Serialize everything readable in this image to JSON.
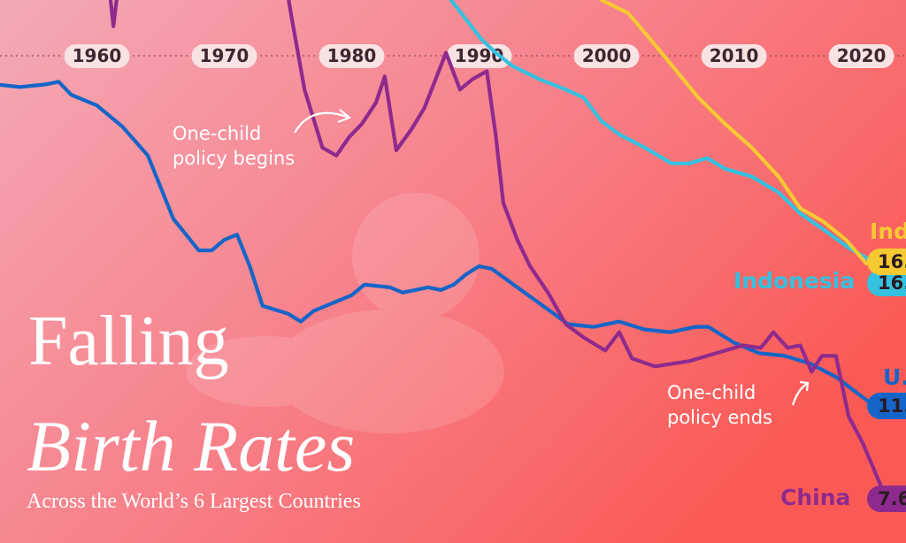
{
  "chart_data": {
    "type": "line",
    "title_lines": [
      "Falling",
      "Birth Rates"
    ],
    "subtitle": "Across the World’s 6 Largest Countries",
    "annotations": [
      {
        "lines": [
          "One-child",
          "policy begins"
        ]
      },
      {
        "lines": [
          "One-child",
          "policy ends"
        ]
      }
    ],
    "xlim": [
      1952.4,
      2023.5
    ],
    "ylim": [
      5.8,
      26.4
    ],
    "xticks": [
      1960,
      1970,
      1980,
      1990,
      2000,
      2010,
      2020
    ],
    "series": [
      {
        "name": "U.",
        "color": "#1565c8",
        "x": [
          1952,
          1954,
          1956,
          1957,
          1958,
          1960,
          1962,
          1964,
          1966,
          1968,
          1969,
          1970,
          1971,
          1972,
          1973,
          1975,
          1976,
          1977,
          1978,
          1980,
          1981,
          1983,
          1984,
          1986,
          1987,
          1988,
          1989,
          1990,
          1991,
          1993,
          1995,
          1997,
          1999,
          2000,
          2001,
          2003,
          2005,
          2007,
          2008,
          2010,
          2012,
          2014,
          2016,
          2018,
          2021
        ],
        "values": [
          23.2,
          23.1,
          23.2,
          23.3,
          22.8,
          22.4,
          21.6,
          20.5,
          18.1,
          16.9,
          16.9,
          17.3,
          17.5,
          16.3,
          14.8,
          14.5,
          14.2,
          14.6,
          14.8,
          15.2,
          15.6,
          15.5,
          15.3,
          15.5,
          15.4,
          15.6,
          16.0,
          16.3,
          16.2,
          15.5,
          14.8,
          14.1,
          14.0,
          14.1,
          14.2,
          13.9,
          13.8,
          14.0,
          14.0,
          13.4,
          13.0,
          12.9,
          12.6,
          12.1,
          11.0
        ],
        "value_labels": [
          null,
          null,
          null,
          null,
          null,
          null,
          null,
          null,
          null,
          null,
          null,
          null,
          null,
          null,
          null,
          null,
          null,
          null,
          null,
          null,
          null,
          null,
          null,
          null,
          null,
          null,
          null,
          null,
          null,
          null,
          null,
          null,
          null,
          null,
          null,
          null,
          null,
          null,
          null,
          null,
          null,
          null,
          null,
          null,
          "11."
        ]
      },
      {
        "name": "China",
        "color": "#8e2a8e",
        "x": [
          1960.5,
          1961.3,
          1962.2,
          1968,
          1974.5,
          1975.3,
          1976.3,
          1977.7,
          1978.8,
          1979.8,
          1980.8,
          1981.9,
          1982.6,
          1983.5,
          1984.7,
          1985.7,
          1987.4,
          1988.5,
          1989.5,
          1990.6,
          1991.3,
          1991.9,
          1993,
          1994,
          1995.4,
          1996.8,
          1998.2,
          1999.9,
          2001,
          2002,
          2003.8,
          2006.5,
          2008.6,
          2010.7,
          2012.1,
          2013.1,
          2014.2,
          2015.2,
          2016.1,
          2016.9,
          2018,
          2019,
          2020.1,
          2021.5,
          2021.8
        ],
        "values": [
          29.0,
          25.4,
          29.0,
          null,
          28.0,
          25.7,
          23.0,
          20.8,
          20.5,
          21.2,
          21.7,
          22.5,
          23.5,
          20.7,
          21.5,
          22.3,
          24.4,
          23.0,
          23.4,
          23.7,
          21.3,
          18.7,
          17.3,
          16.3,
          15.3,
          14.1,
          13.6,
          13.1,
          13.8,
          12.8,
          12.5,
          12.7,
          13.0,
          13.3,
          13.2,
          13.8,
          13.2,
          13.3,
          12.3,
          12.9,
          12.9,
          10.6,
          9.6,
          8.0,
          7.6
        ],
        "value_labels": [
          null,
          null,
          null,
          null,
          null,
          null,
          null,
          null,
          null,
          null,
          null,
          null,
          null,
          null,
          null,
          null,
          null,
          null,
          null,
          null,
          null,
          null,
          null,
          null,
          null,
          null,
          null,
          null,
          null,
          null,
          null,
          null,
          null,
          null,
          null,
          null,
          null,
          null,
          null,
          null,
          null,
          null,
          null,
          null,
          "7.6"
        ]
      },
      {
        "name": "Indonesia",
        "color": "#35c1e0",
        "x": [
          1987.8,
          1990.2,
          1991.3,
          1992.6,
          1994.7,
          1996.8,
          1998.2,
          1999.6,
          2001,
          2003,
          2005.1,
          2006.5,
          2007.9,
          2009.3,
          2011.4,
          2013.5,
          2015.2,
          2017.3,
          2019,
          2020.8
        ],
        "values": [
          26.4,
          24.9,
          24.4,
          23.9,
          23.4,
          23.0,
          22.7,
          21.8,
          21.3,
          20.8,
          20.2,
          20.2,
          20.4,
          20.0,
          19.7,
          19.1,
          18.3,
          17.6,
          17.0,
          16.5
        ],
        "value_labels": [
          null,
          null,
          null,
          null,
          null,
          null,
          null,
          null,
          null,
          null,
          null,
          null,
          null,
          null,
          null,
          null,
          null,
          null,
          null,
          "16."
        ]
      },
      {
        "name": "Ind",
        "color": "#f6c932",
        "x": [
          1999.6,
          2001.7,
          2003.8,
          2005.5,
          2007.2,
          2009.3,
          2011.4,
          2013.5,
          2015.2,
          2017,
          2018.8,
          2020.4
        ],
        "values": [
          26.4,
          25.9,
          24.7,
          23.7,
          22.7,
          21.7,
          20.8,
          19.7,
          18.5,
          18.0,
          17.3,
          16.4
        ],
        "value_labels": [
          null,
          null,
          null,
          null,
          null,
          null,
          null,
          null,
          null,
          null,
          null,
          "16."
        ]
      }
    ]
  }
}
